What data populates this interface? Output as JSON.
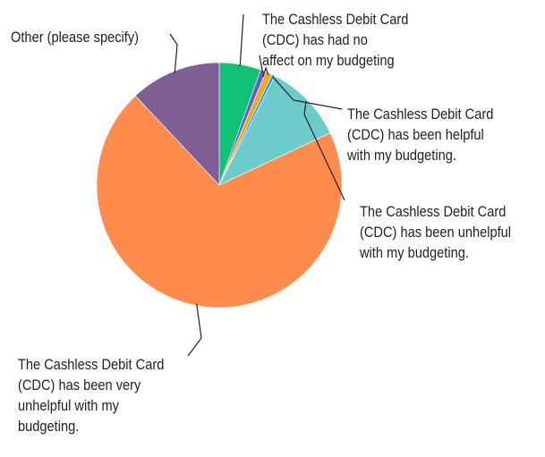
{
  "chart_data": {
    "type": "pie",
    "slices": [
      {
        "label": "The Cashless Debit Card (CDC) has had no affect on my budgeting",
        "lines": [
          "The Cashless Debit Card",
          "(CDC) has had no",
          "affect on my budgeting"
        ],
        "value": 5.5,
        "color": "#11c276"
      },
      {
        "label": "",
        "lines": [],
        "value": 0.7,
        "color": "#5b5fc7"
      },
      {
        "label": "",
        "lines": [],
        "value": 0.9,
        "color": "#f5a623"
      },
      {
        "label": "The Cashless Debit Card (CDC) has been helpful with my budgeting.",
        "lines": [
          "The Cashless Debit Card",
          "(CDC) has been helpful",
          "with my budgeting."
        ],
        "value": 0.4,
        "color": "#1f9de0"
      },
      {
        "label": "The Cashless Debit Card (CDC) has been unhelpful with my budgeting.",
        "lines": [
          "The Cashless Debit Card",
          "(CDC) has been unhelpful",
          "with my budgeting."
        ],
        "value": 10.5,
        "color": "#6ccbcb"
      },
      {
        "label": "The Cashless Debit Card (CDC) has been very unhelpful with my budgeting.",
        "lines": [
          "The Cashless Debit Card",
          "(CDC) has been very",
          "unhelpful with my",
          "budgeting."
        ],
        "value": 70.0,
        "color": "#ff8c4c"
      },
      {
        "label": "Other (please specify)",
        "lines": [
          "Other (please specify)"
        ],
        "value": 12.0,
        "color": "#7f5f96"
      }
    ],
    "legend": "none"
  }
}
